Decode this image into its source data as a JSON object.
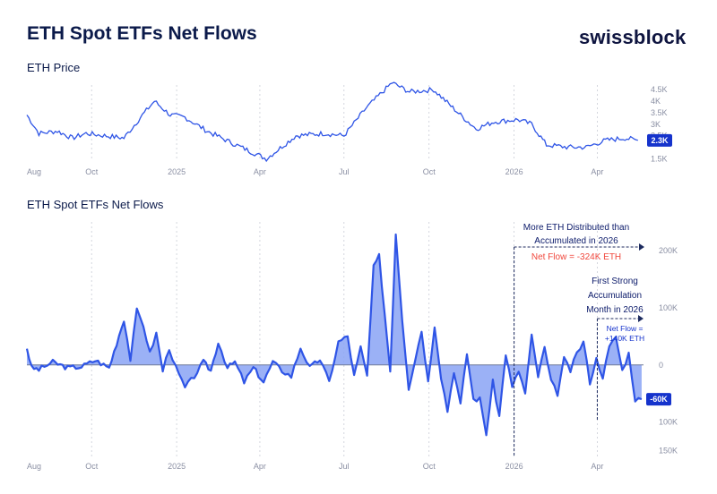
{
  "title": "ETH Spot ETFs Net Flows",
  "brand": "swissblock",
  "colors": {
    "line": "#2f55e6",
    "fill": "#8aa3f5",
    "badge": "#1533cc",
    "annotation": "#0b1a6a",
    "accent_red": "#f0473c"
  },
  "chart_data": [
    {
      "type": "line",
      "title": "ETH Price",
      "x_tick_labels": [
        "Aug",
        "Oct",
        "2025",
        "Apr",
        "Jul",
        "Oct",
        "2026",
        "Apr"
      ],
      "x_ticks": [
        "2024-08",
        "2024-10",
        "2025-01",
        "2025-04",
        "2025-07",
        "2025-10",
        "2026-01",
        "2026-04"
      ],
      "y_tick_labels": [
        "4.5K",
        "4K",
        "3.5K",
        "3K",
        "2.5K",
        "1.5K"
      ],
      "y_tick_values": [
        4500,
        4000,
        3500,
        3000,
        2500,
        1500
      ],
      "ylim": [
        1400,
        4700
      ],
      "series": [
        {
          "x": [
            "2024-07-23",
            "2024-08-05",
            "2024-08-25",
            "2024-09-10",
            "2024-09-25",
            "2024-10-15",
            "2024-11-05",
            "2024-11-25",
            "2024-12-08",
            "2024-12-25",
            "2025-01-10",
            "2025-02-03",
            "2025-03-01",
            "2025-04-08",
            "2025-05-10",
            "2025-06-10",
            "2025-07-01",
            "2025-07-25",
            "2025-08-22",
            "2025-09-10",
            "2025-10-06",
            "2025-11-04",
            "2025-11-21",
            "2025-12-10",
            "2026-01-05",
            "2026-01-20",
            "2026-02-05",
            "2026-03-01",
            "2026-03-20",
            "2026-04-10",
            "2026-05-01",
            "2026-05-15"
          ],
          "values": [
            3400,
            2600,
            2700,
            2400,
            2600,
            2500,
            2400,
            3400,
            4000,
            3400,
            3300,
            2700,
            2200,
            1500,
            2500,
            2600,
            2500,
            3700,
            4800,
            4400,
            4500,
            3400,
            2800,
            3100,
            3200,
            3000,
            2100,
            2000,
            2000,
            2300,
            2400,
            2300
          ]
        }
      ],
      "current_value_label": "2.3K",
      "grid": "vertical"
    },
    {
      "type": "area",
      "title": "ETH Spot ETFs Net Flows",
      "x_tick_labels": [
        "Aug",
        "Oct",
        "2025",
        "Apr",
        "Jul",
        "Oct",
        "2026",
        "Apr"
      ],
      "x_ticks": [
        "2024-08",
        "2024-10",
        "2025-01",
        "2025-04",
        "2025-07",
        "2025-10",
        "2026-01",
        "2026-04"
      ],
      "y_tick_labels": [
        "200K",
        "100K",
        "0",
        "100K",
        "150K"
      ],
      "y_tick_values": [
        200000,
        100000,
        0,
        -100000,
        -150000
      ],
      "ylim": [
        -160000,
        250000
      ],
      "series": [
        {
          "x": [
            "2024-07-23",
            "2024-07-28",
            "2024-08-05",
            "2024-08-20",
            "2024-09-05",
            "2024-09-20",
            "2024-10-05",
            "2024-10-20",
            "2024-11-05",
            "2024-11-12",
            "2024-11-19",
            "2024-11-26",
            "2024-12-03",
            "2024-12-10",
            "2024-12-17",
            "2024-12-24",
            "2024-12-31",
            "2025-01-10",
            "2025-01-20",
            "2025-01-30",
            "2025-02-07",
            "2025-02-15",
            "2025-02-25",
            "2025-03-05",
            "2025-03-15",
            "2025-03-25",
            "2025-04-05",
            "2025-04-15",
            "2025-04-25",
            "2025-05-05",
            "2025-05-15",
            "2025-05-25",
            "2025-06-05",
            "2025-06-15",
            "2025-06-25",
            "2025-07-05",
            "2025-07-12",
            "2025-07-19",
            "2025-07-26",
            "2025-08-02",
            "2025-08-08",
            "2025-08-14",
            "2025-08-20",
            "2025-08-26",
            "2025-09-02",
            "2025-09-09",
            "2025-09-16",
            "2025-09-23",
            "2025-09-30",
            "2025-10-07",
            "2025-10-14",
            "2025-10-21",
            "2025-10-28",
            "2025-11-04",
            "2025-11-11",
            "2025-11-18",
            "2025-11-25",
            "2025-12-02",
            "2025-12-09",
            "2025-12-16",
            "2025-12-23",
            "2025-12-30",
            "2026-01-06",
            "2026-01-13",
            "2026-01-20",
            "2026-01-27",
            "2026-02-03",
            "2026-02-10",
            "2026-02-17",
            "2026-02-24",
            "2026-03-03",
            "2026-03-10",
            "2026-03-17",
            "2026-03-24",
            "2026-03-31",
            "2026-04-07",
            "2026-04-14",
            "2026-04-21",
            "2026-04-28",
            "2026-05-05",
            "2026-05-12",
            "2026-05-19"
          ],
          "values": [
            30000,
            -5000,
            -8000,
            5000,
            -5000,
            -3000,
            8000,
            -5000,
            80000,
            10000,
            95000,
            70000,
            20000,
            55000,
            -10000,
            30000,
            -5000,
            -40000,
            -20000,
            5000,
            -10000,
            40000,
            -5000,
            5000,
            -30000,
            -5000,
            -30000,
            5000,
            -10000,
            -20000,
            30000,
            -5000,
            10000,
            -30000,
            40000,
            50000,
            -20000,
            30000,
            -20000,
            170000,
            190000,
            90000,
            -10000,
            230000,
            80000,
            -40000,
            10000,
            60000,
            -30000,
            70000,
            -20000,
            -80000,
            -10000,
            -70000,
            20000,
            -60000,
            -60000,
            -120000,
            -30000,
            -90000,
            20000,
            -40000,
            -10000,
            -50000,
            50000,
            -20000,
            30000,
            -30000,
            -50000,
            10000,
            -10000,
            20000,
            40000,
            -30000,
            10000,
            -20000,
            30000,
            50000,
            -10000,
            20000,
            -60000,
            -60000
          ]
        }
      ],
      "current_value_label": "-60K",
      "grid": "vertical",
      "annotations": [
        {
          "text_lines": [
            "More ETH Distributed than",
            "Accumulated in 2026"
          ],
          "color": "#0b1a6a"
        },
        {
          "text_lines": [
            "Net Flow = -324K ETH"
          ],
          "color": "#f0473c"
        },
        {
          "text_lines": [
            "First Strong",
            "Accumulation",
            "Month in 2026"
          ],
          "color": "#0b1a6a"
        },
        {
          "text_lines": [
            "Net Flow =",
            "+140K ETH"
          ],
          "color": "#1533cc"
        }
      ]
    }
  ]
}
